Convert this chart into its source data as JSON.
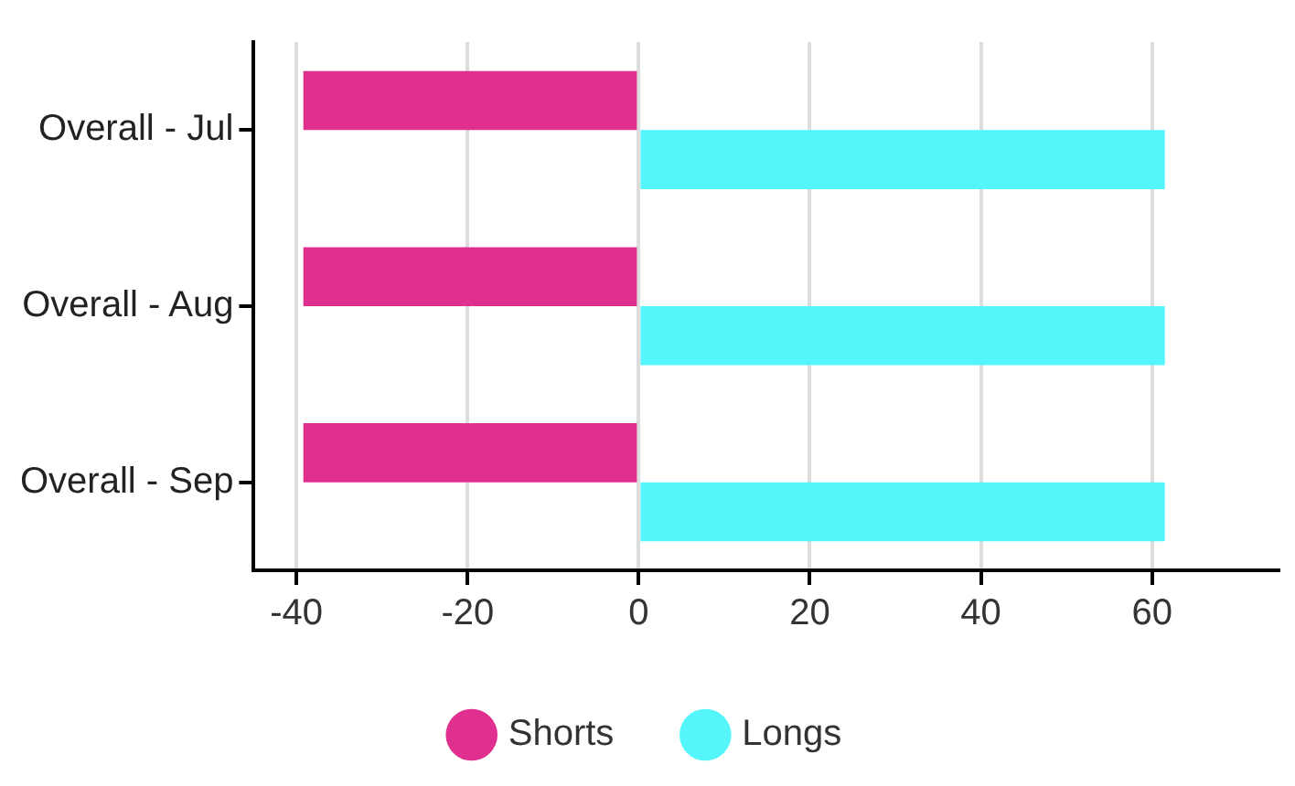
{
  "chart_data": {
    "type": "bar",
    "orientation": "horizontal",
    "categories": [
      "Overall - Jul",
      "Overall - Aug",
      "Overall - Sep"
    ],
    "series": [
      {
        "name": "Shorts",
        "color": "#e0308f",
        "values": [
          -39.2,
          -39.2,
          -39.2
        ]
      },
      {
        "name": "Longs",
        "color": "#55f5fc",
        "values": [
          61.5,
          61.5,
          61.5
        ]
      }
    ],
    "xlim": [
      -45,
      75
    ],
    "xticks": [
      -40,
      -20,
      0,
      20,
      40,
      60
    ],
    "grid": "x",
    "legend": "bottom"
  }
}
